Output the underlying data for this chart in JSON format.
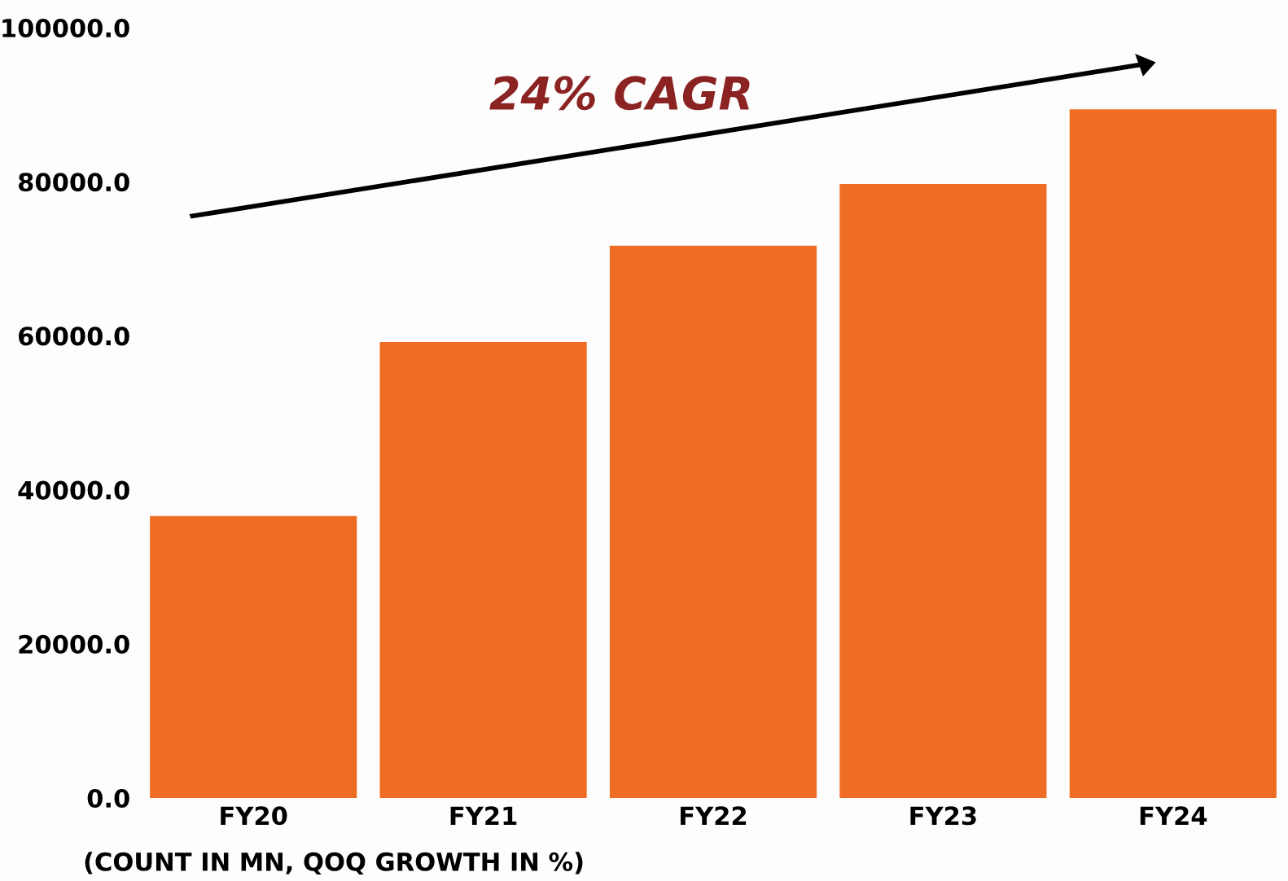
{
  "chart_data": {
    "type": "bar",
    "xlabel": "(COUNT IN MN, QOQ GROWTH IN %)",
    "categories": [
      "FY20",
      "FY21",
      "FY22",
      "FY23",
      "FY24"
    ],
    "values": [
      36600,
      59200,
      71700,
      79700,
      89400
    ],
    "color": "#ef6c24",
    "ylim": [
      0,
      100000
    ],
    "yticks": [
      {
        "value": 0,
        "label": "0.0"
      },
      {
        "value": 20000,
        "label": "20000.0"
      },
      {
        "value": 40000,
        "label": "40000.0"
      },
      {
        "value": 60000,
        "label": "60000.0"
      },
      {
        "value": 80000,
        "label": "80000.0"
      },
      {
        "value": 100000,
        "label": "100000.0"
      }
    ],
    "annotations": [
      "24% CAGR"
    ],
    "grid": false
  }
}
